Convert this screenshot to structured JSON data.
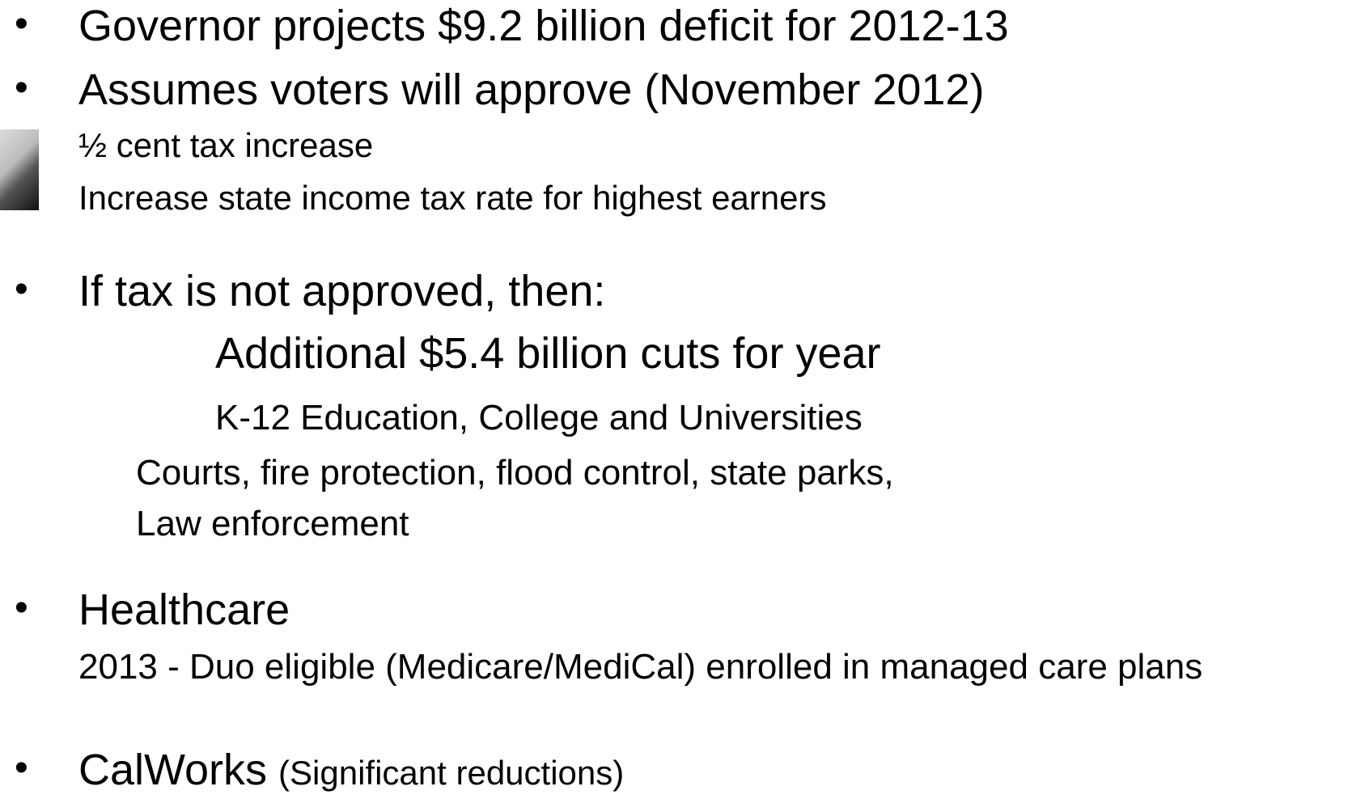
{
  "items": [
    {
      "text": "Governor projects $9.2 billion deficit for 2012-13"
    },
    {
      "text": "Assumes voters will approve (November 2012)",
      "subitems": [
        "½ cent tax increase",
        "Increase state income tax rate for highest earners"
      ]
    },
    {
      "text": "If tax is not approved, then:",
      "subitems": [
        "Additional $5.4 billion cuts for year",
        "K-12 Education, College and Universities",
        "Courts, fire protection, flood control, state parks,",
        "Law enforcement"
      ]
    },
    {
      "text": "Healthcare",
      "subitems": [
        "2013 - Duo eligible (Medicare/MediCal) enrolled in managed care plans"
      ]
    },
    {
      "text": "CalWorks",
      "note": "(Significant reductions)"
    }
  ]
}
